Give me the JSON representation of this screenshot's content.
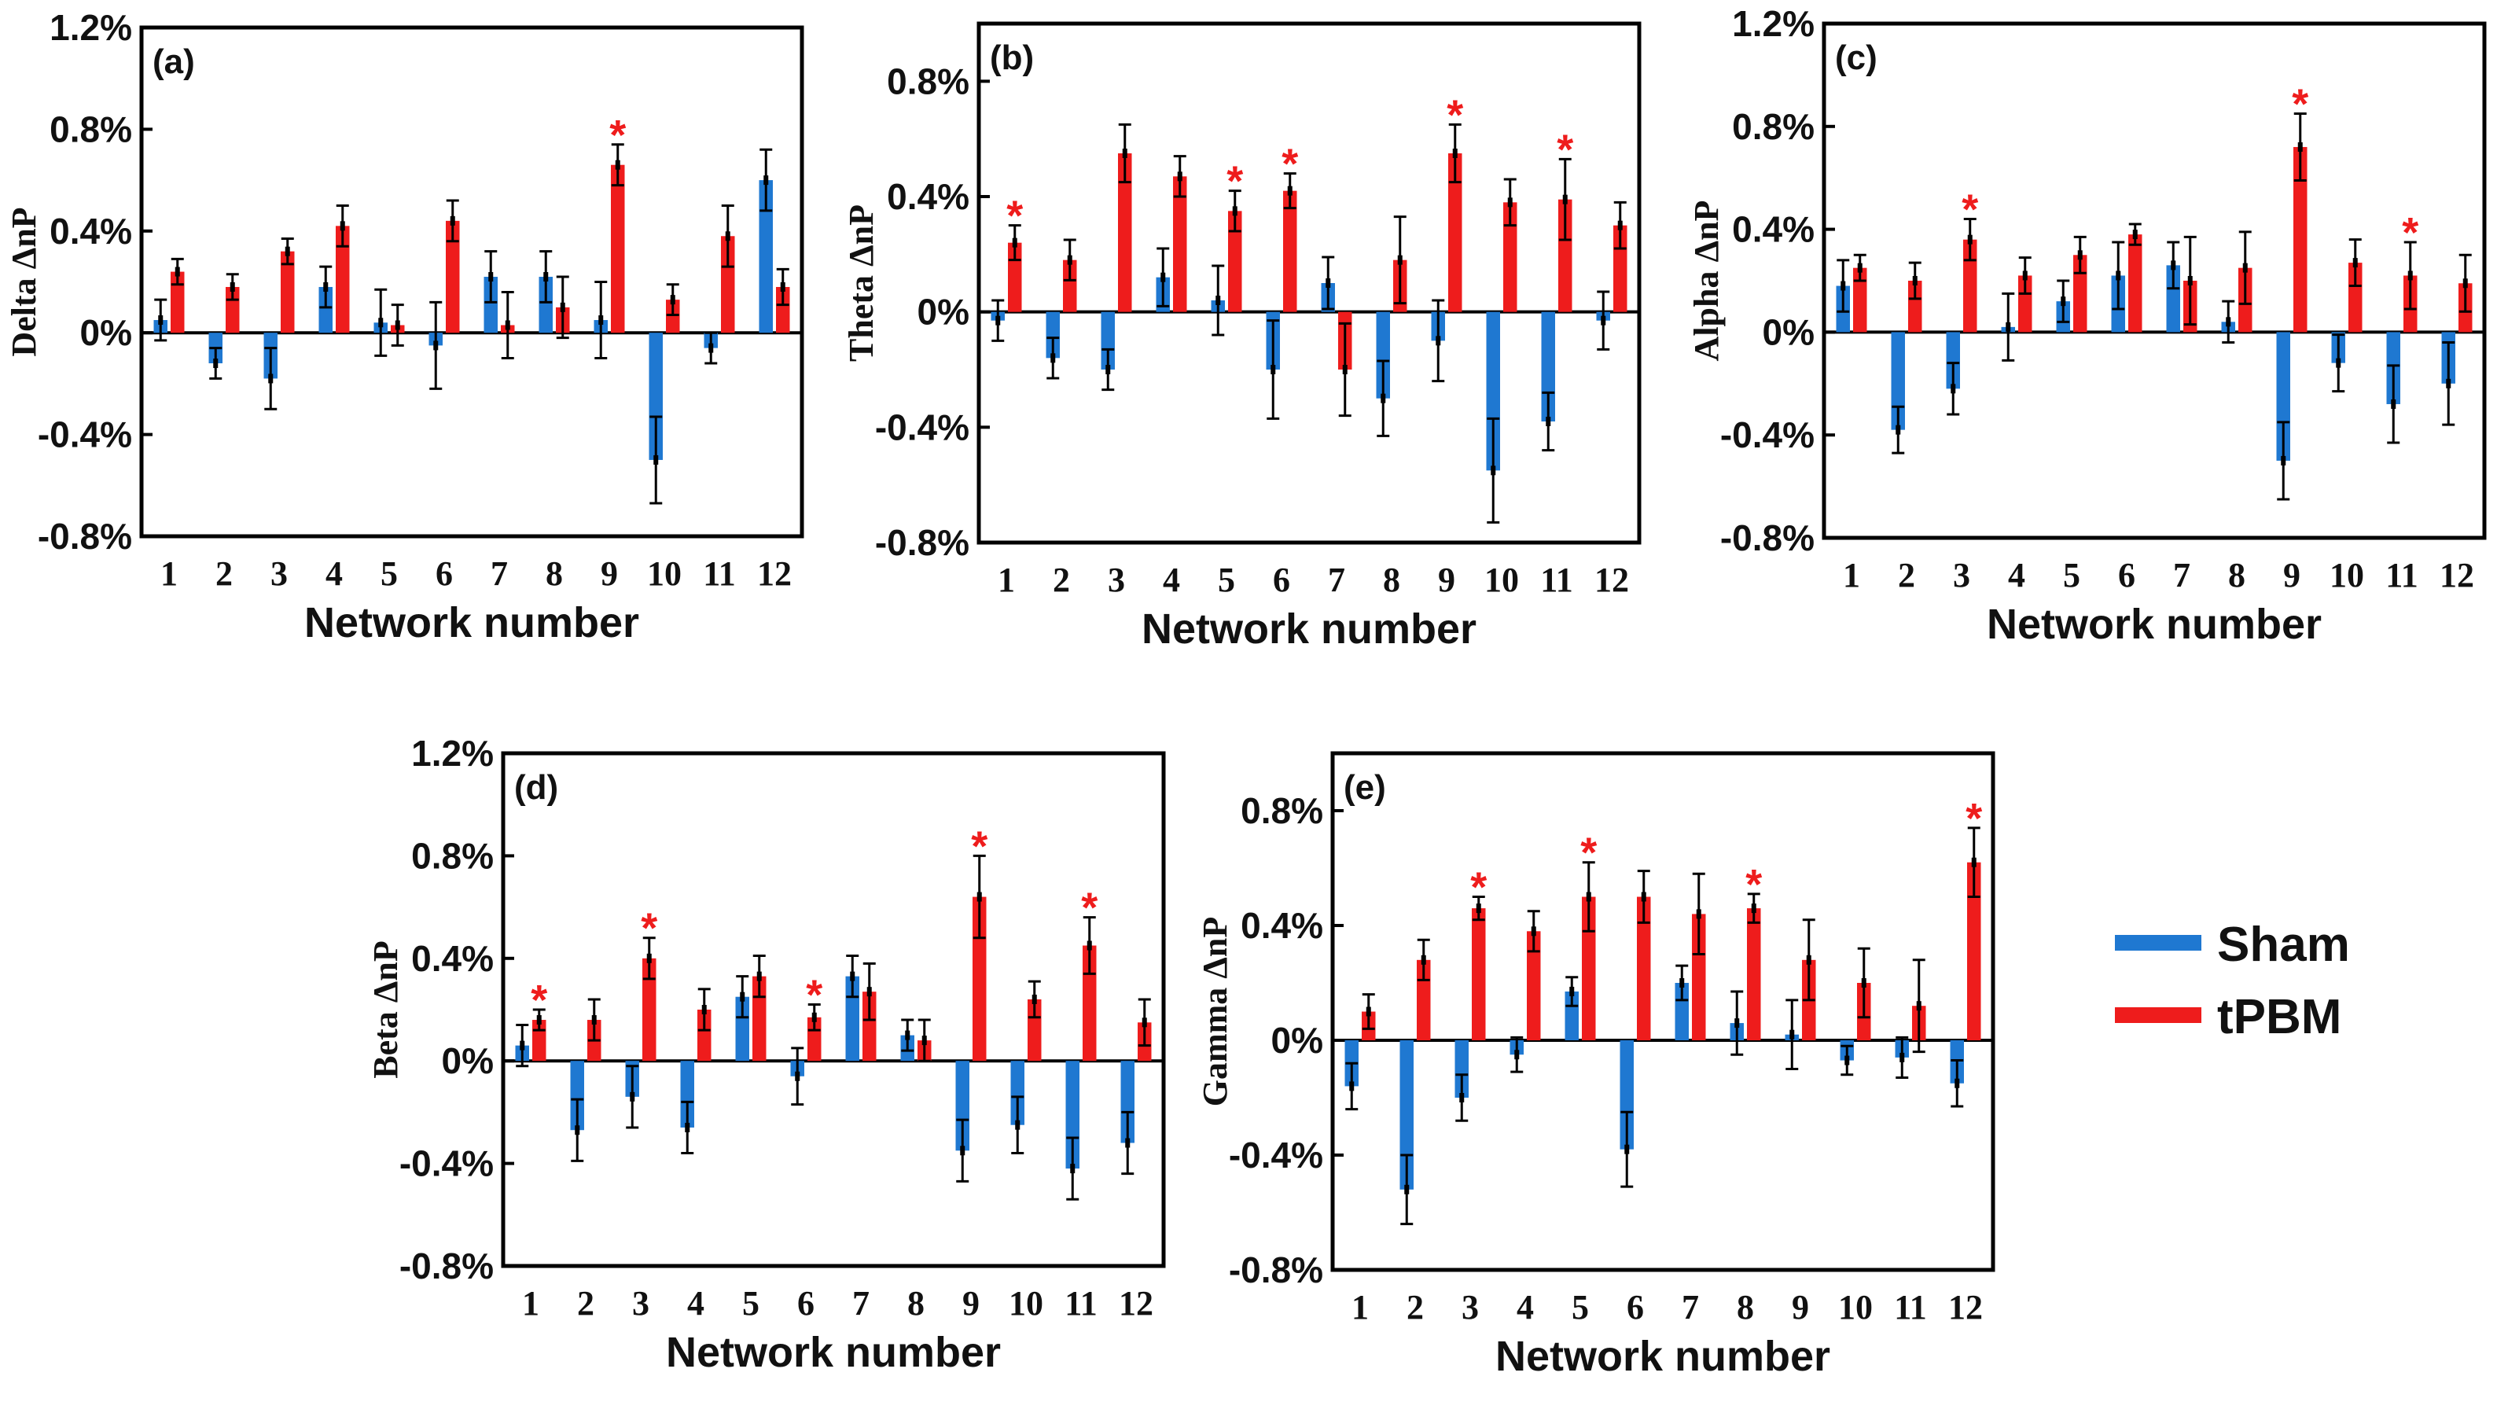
{
  "colors": {
    "sham": "#1f78d1",
    "tpbm": "#ee1c1c",
    "star": "#ee1c1c",
    "axis": "#000000"
  },
  "legend": {
    "items": [
      {
        "label": "Sham",
        "series": "sham"
      },
      {
        "label": "tPBM",
        "series": "tpbm"
      }
    ]
  },
  "chart_data": [
    {
      "type": "bar",
      "panel": "(a)",
      "title": "",
      "ylabel": "Delta ΔnP",
      "xlabel": "Network number",
      "categories": [
        "1",
        "2",
        "3",
        "4",
        "5",
        "6",
        "7",
        "8",
        "9",
        "10",
        "11",
        "12"
      ],
      "ylim": [
        -0.8,
        1.2
      ],
      "yticks": [
        -0.8,
        -0.4,
        0,
        0.4,
        0.8,
        1.2
      ],
      "ytick_labels": [
        "-0.8%",
        "-0.4%",
        "0%",
        "0.4%",
        "0.8%",
        "1.2%"
      ],
      "unit": "%",
      "series": [
        {
          "name": "Sham",
          "values": [
            0.05,
            -0.12,
            -0.18,
            0.18,
            0.04,
            -0.05,
            0.22,
            0.22,
            0.05,
            -0.5,
            -0.06,
            0.6
          ],
          "errors": [
            0.08,
            0.06,
            0.12,
            0.08,
            0.13,
            0.17,
            0.1,
            0.1,
            0.15,
            0.17,
            0.06,
            0.12
          ]
        },
        {
          "name": "tPBM",
          "values": [
            0.24,
            0.18,
            0.32,
            0.42,
            0.03,
            0.44,
            0.03,
            0.1,
            0.66,
            0.13,
            0.38,
            0.18
          ],
          "errors": [
            0.05,
            0.05,
            0.05,
            0.08,
            0.08,
            0.08,
            0.13,
            0.12,
            0.08,
            0.06,
            0.12,
            0.07
          ]
        }
      ],
      "stars": [
        "9"
      ]
    },
    {
      "type": "bar",
      "panel": "(b)",
      "title": "",
      "ylabel": "Theta ΔnP",
      "xlabel": "Network number",
      "categories": [
        "1",
        "2",
        "3",
        "4",
        "5",
        "6",
        "7",
        "8",
        "9",
        "10",
        "11",
        "12"
      ],
      "ylim": [
        -0.8,
        1.0
      ],
      "yticks": [
        -0.8,
        -0.4,
        0,
        0.4,
        0.8
      ],
      "ytick_labels": [
        "-0.8%",
        "-0.4%",
        "0%",
        "0.4%",
        "0.8%"
      ],
      "unit": "%",
      "series": [
        {
          "name": "Sham",
          "values": [
            -0.03,
            -0.16,
            -0.2,
            0.12,
            0.04,
            -0.2,
            0.1,
            -0.3,
            -0.1,
            -0.55,
            -0.38,
            -0.03
          ],
          "errors": [
            0.07,
            0.07,
            0.07,
            0.1,
            0.12,
            0.17,
            0.09,
            0.13,
            0.14,
            0.18,
            0.1,
            0.1
          ]
        },
        {
          "name": "tPBM",
          "values": [
            0.24,
            0.18,
            0.55,
            0.47,
            0.35,
            0.42,
            -0.2,
            0.18,
            0.55,
            0.38,
            0.39,
            0.3
          ],
          "errors": [
            0.06,
            0.07,
            0.1,
            0.07,
            0.07,
            0.06,
            0.16,
            0.15,
            0.1,
            0.08,
            0.14,
            0.08
          ]
        }
      ],
      "stars": [
        "1",
        "5",
        "6",
        "9",
        "11"
      ]
    },
    {
      "type": "bar",
      "panel": "(c)",
      "title": "",
      "ylabel": "Alpha ΔnP",
      "xlabel": "Network number",
      "categories": [
        "1",
        "2",
        "3",
        "4",
        "5",
        "6",
        "7",
        "8",
        "9",
        "10",
        "11",
        "12"
      ],
      "ylim": [
        -0.8,
        1.2
      ],
      "yticks": [
        -0.8,
        -0.4,
        0,
        0.4,
        0.8,
        1.2
      ],
      "ytick_labels": [
        "-0.8%",
        "-0.4%",
        "0%",
        "0.4%",
        "0.8%",
        "1.2%"
      ],
      "unit": "%",
      "series": [
        {
          "name": "Sham",
          "values": [
            0.18,
            -0.38,
            -0.22,
            0.02,
            0.12,
            0.22,
            0.26,
            0.04,
            -0.5,
            -0.12,
            -0.28,
            -0.2
          ],
          "errors": [
            0.1,
            0.09,
            0.1,
            0.13,
            0.08,
            0.13,
            0.09,
            0.08,
            0.15,
            0.11,
            0.15,
            0.16
          ]
        },
        {
          "name": "tPBM",
          "values": [
            0.25,
            0.2,
            0.36,
            0.22,
            0.3,
            0.38,
            0.2,
            0.25,
            0.72,
            0.27,
            0.22,
            0.19
          ],
          "errors": [
            0.05,
            0.07,
            0.08,
            0.07,
            0.07,
            0.04,
            0.17,
            0.14,
            0.13,
            0.09,
            0.13,
            0.11
          ]
        }
      ],
      "stars": [
        "3",
        "9",
        "11"
      ]
    },
    {
      "type": "bar",
      "panel": "(d)",
      "title": "",
      "ylabel": "Beta ΔnP",
      "xlabel": "Network number",
      "categories": [
        "1",
        "2",
        "3",
        "4",
        "5",
        "6",
        "7",
        "8",
        "9",
        "10",
        "11",
        "12"
      ],
      "ylim": [
        -0.8,
        1.2
      ],
      "yticks": [
        -0.8,
        -0.4,
        0,
        0.4,
        0.8,
        1.2
      ],
      "ytick_labels": [
        "-0.8%",
        "-0.4%",
        "0%",
        "0.4%",
        "0.8%",
        "1.2%"
      ],
      "unit": "%",
      "series": [
        {
          "name": "Sham",
          "values": [
            0.06,
            -0.27,
            -0.14,
            -0.26,
            0.25,
            -0.06,
            0.33,
            0.1,
            -0.35,
            -0.25,
            -0.42,
            -0.32
          ],
          "errors": [
            0.08,
            0.12,
            0.12,
            0.1,
            0.08,
            0.11,
            0.08,
            0.06,
            0.12,
            0.11,
            0.12,
            0.12
          ]
        },
        {
          "name": "tPBM",
          "values": [
            0.16,
            0.16,
            0.4,
            0.2,
            0.33,
            0.17,
            0.27,
            0.08,
            0.64,
            0.24,
            0.45,
            0.15
          ],
          "errors": [
            0.04,
            0.08,
            0.08,
            0.08,
            0.08,
            0.05,
            0.11,
            0.08,
            0.16,
            0.07,
            0.11,
            0.09
          ]
        }
      ],
      "stars": [
        "1",
        "3",
        "6",
        "9",
        "11"
      ]
    },
    {
      "type": "bar",
      "panel": "(e)",
      "title": "",
      "ylabel": "Gamma ΔnP",
      "xlabel": "Network number",
      "categories": [
        "1",
        "2",
        "3",
        "4",
        "5",
        "6",
        "7",
        "8",
        "9",
        "10",
        "11",
        "12"
      ],
      "ylim": [
        -0.8,
        1.0
      ],
      "yticks": [
        -0.8,
        -0.4,
        0,
        0.4,
        0.8
      ],
      "ytick_labels": [
        "-0.8%",
        "-0.4%",
        "0%",
        "0.4%",
        "0.8%"
      ],
      "unit": "%",
      "series": [
        {
          "name": "Sham",
          "values": [
            -0.16,
            -0.52,
            -0.2,
            -0.05,
            0.17,
            -0.38,
            0.2,
            0.06,
            0.02,
            -0.07,
            -0.06,
            -0.15
          ],
          "errors": [
            0.08,
            0.12,
            0.08,
            0.06,
            0.05,
            0.13,
            0.06,
            0.11,
            0.12,
            0.05,
            0.07,
            0.08
          ]
        },
        {
          "name": "tPBM",
          "values": [
            0.1,
            0.28,
            0.46,
            0.38,
            0.5,
            0.5,
            0.44,
            0.46,
            0.28,
            0.2,
            0.12,
            0.62
          ],
          "errors": [
            0.06,
            0.07,
            0.04,
            0.07,
            0.12,
            0.09,
            0.14,
            0.05,
            0.14,
            0.12,
            0.16,
            0.12
          ]
        }
      ],
      "stars": [
        "3",
        "5",
        "8",
        "12"
      ]
    }
  ]
}
